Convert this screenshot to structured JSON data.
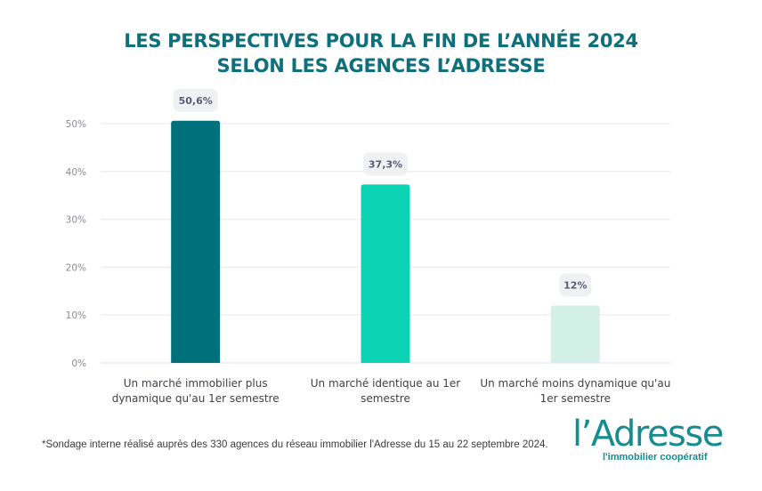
{
  "title": {
    "line1": "LES PERSPECTIVES POUR LA FIN DE L’ANNÉE 2024",
    "line2": "SELON LES AGENCES L’ADRESSE"
  },
  "chart_data": {
    "type": "bar",
    "title": "LES PERSPECTIVES POUR LA FIN DE L’ANNÉE 2024 SELON LES AGENCES L’ADRESSE",
    "xlabel": "",
    "ylabel": "",
    "ylim": [
      0,
      50
    ],
    "yticks": [
      0,
      10,
      20,
      30,
      40,
      50
    ],
    "ytick_labels": [
      "0%",
      "10%",
      "20%",
      "30%",
      "40%",
      "50%"
    ],
    "grid": true,
    "categories": [
      [
        "Un marché immobilier plus",
        "dynamique qu'au 1er semestre"
      ],
      [
        "Un marché identique au 1er",
        "semestre"
      ],
      [
        "Un marché moins dynamique qu'au",
        "1er semestre"
      ]
    ],
    "values": [
      50.6,
      37.3,
      12
    ],
    "data_labels": [
      "50,6%",
      "37,3%",
      "12%"
    ],
    "colors": [
      "#00707b",
      "#0dd3b5",
      "#d3f0e6"
    ]
  },
  "footnote": "*Sondage interne réalisé auprès des 330 agences du réseau immobilier l'Adresse du 15 au 22 septembre 2024.",
  "logo": {
    "name": "l’Adresse",
    "tagline": "l'immobilier coopératif"
  }
}
